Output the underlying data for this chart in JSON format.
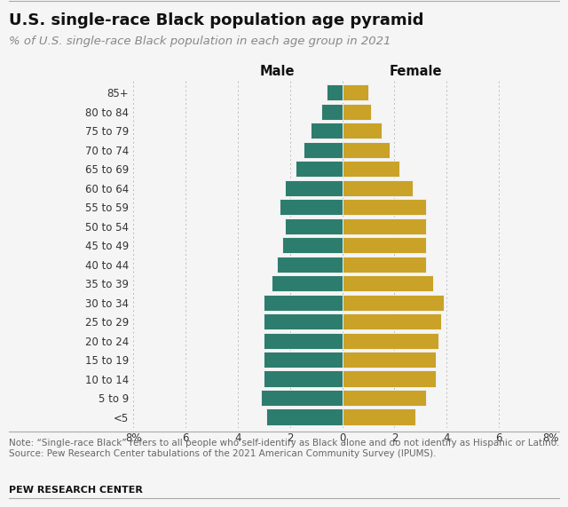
{
  "title": "U.S. single-race Black population age pyramid",
  "subtitle": "% of U.S. single-race Black population in each age group in 2021",
  "note": "Note: “Single-race Black” refers to all people who self-identify as Black alone and do not identify as Hispanic or Latino.\nSource: Pew Research Center tabulations of the 2021 American Community Survey (IPUMS).",
  "source_label": "PEW RESEARCH CENTER",
  "age_groups": [
    "<5",
    "5 to 9",
    "10 to 14",
    "15 to 19",
    "20 to 24",
    "25 to 29",
    "30 to 34",
    "35 to 39",
    "40 to 44",
    "45 to 49",
    "50 to 54",
    "55 to 59",
    "60 to 64",
    "65 to 69",
    "70 to 74",
    "75 to 79",
    "80 to 84",
    "85+"
  ],
  "male_values": [
    2.9,
    3.1,
    3.0,
    3.0,
    3.0,
    3.0,
    3.0,
    2.7,
    2.5,
    2.3,
    2.2,
    2.4,
    2.2,
    1.8,
    1.5,
    1.2,
    0.8,
    0.6
  ],
  "female_values": [
    2.8,
    3.2,
    3.6,
    3.6,
    3.7,
    3.8,
    3.9,
    3.5,
    3.2,
    3.2,
    3.2,
    3.2,
    2.7,
    2.2,
    1.8,
    1.5,
    1.1,
    1.0
  ],
  "male_color": "#2d7d6e",
  "female_color": "#c9a227",
  "bar_edge_color": "#f0f0f0",
  "bar_height": 0.85,
  "xlim": 8,
  "xticks": [
    -8,
    -6,
    -4,
    -2,
    0,
    2,
    4,
    6,
    8
  ],
  "xtick_labels": [
    "8%",
    "6",
    "4",
    "2",
    "0",
    "2",
    "4",
    "6",
    "8%"
  ],
  "male_label": "Male",
  "female_label": "Female",
  "background_color": "#f5f5f5",
  "grid_color": "#bbbbbb",
  "title_fontsize": 13,
  "subtitle_fontsize": 9.5,
  "tick_fontsize": 8.5,
  "note_fontsize": 7.5
}
